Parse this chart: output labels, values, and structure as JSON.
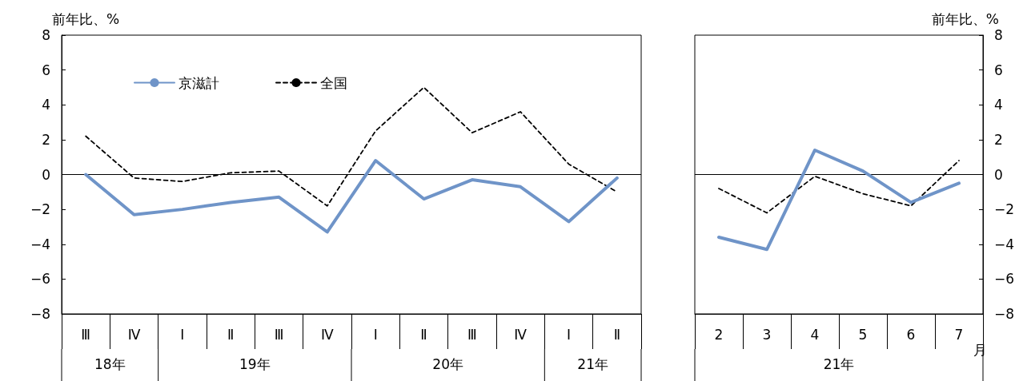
{
  "chart_data": [
    {
      "type": "line",
      "ylabel": "前年比、%",
      "categories": [
        "Ⅲ",
        "Ⅳ",
        "Ⅰ",
        "Ⅱ",
        "Ⅲ",
        "Ⅳ",
        "Ⅰ",
        "Ⅱ",
        "Ⅲ",
        "Ⅳ",
        "Ⅰ",
        "Ⅱ"
      ],
      "series": [
        {
          "name": "京滋計",
          "color": "#6f94c8",
          "line_style": "solid",
          "values": [
            0.0,
            -2.3,
            -2.0,
            -1.6,
            -1.3,
            -3.3,
            0.8,
            -1.4,
            -0.3,
            -0.7,
            -2.7,
            -0.2
          ]
        },
        {
          "name": "全国",
          "color": "#000000",
          "line_style": "dashed",
          "values": [
            2.2,
            -0.2,
            -0.4,
            0.1,
            0.2,
            -1.8,
            2.5,
            5.0,
            2.4,
            3.6,
            0.6,
            -1.0
          ]
        }
      ],
      "ylim": [
        -8,
        8
      ],
      "yticks": [
        -8,
        -6,
        -4,
        -2,
        0,
        2,
        4,
        6,
        8
      ],
      "grid": false,
      "legend": "top left",
      "marker": "none",
      "ref_lines": [
        {
          "axis": "y",
          "value": 0,
          "color": "#000000"
        }
      ],
      "annotations": [
        "18年",
        "19年",
        "20年",
        "21年"
      ]
    },
    {
      "type": "line",
      "ylabel": "前年比、%",
      "xlabel": "月",
      "categories": [
        "2",
        "3",
        "4",
        "5",
        "6",
        "7"
      ],
      "series": [
        {
          "color": "#6f94c8",
          "line_style": "solid",
          "values": [
            -3.6,
            -4.3,
            1.4,
            0.2,
            -1.6,
            -0.5
          ]
        },
        {
          "color": "#000000",
          "line_style": "dashed",
          "values": [
            -0.8,
            -2.2,
            -0.1,
            -1.1,
            -1.8,
            0.8
          ]
        }
      ],
      "ylim": [
        -8,
        8
      ],
      "yticks": [
        -8,
        -6,
        -4,
        -2,
        0,
        2,
        4,
        6,
        8
      ],
      "grid": false,
      "legend": false,
      "marker": "none",
      "ref_lines": [
        {
          "axis": "y",
          "value": 0,
          "color": "#000000"
        }
      ],
      "annotations": [
        "21年"
      ]
    }
  ]
}
